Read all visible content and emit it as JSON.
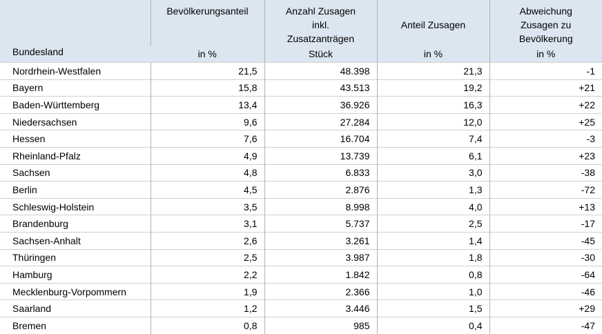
{
  "table": {
    "columns": [
      {
        "title": "Bundesland"
      },
      {
        "title": "Bevölkerungsanteil",
        "unit": "in %"
      },
      {
        "title": "Anzahl Zusagen inkl. Zusatzanträgen",
        "unit": "Stück"
      },
      {
        "title": "Anteil Zusagen",
        "unit": "in %"
      },
      {
        "title": "Abweichung Zusagen zu Bevölkerung",
        "unit": "in %"
      }
    ],
    "rows": [
      [
        "Nordrhein-Westfalen",
        "21,5",
        "48.398",
        "21,3",
        "-1"
      ],
      [
        "Bayern",
        "15,8",
        "43.513",
        "19,2",
        "+21"
      ],
      [
        "Baden-Württemberg",
        "13,4",
        "36.926",
        "16,3",
        "+22"
      ],
      [
        "Niedersachsen",
        "9,6",
        "27.284",
        "12,0",
        "+25"
      ],
      [
        "Hessen",
        "7,6",
        "16.704",
        "7,4",
        "-3"
      ],
      [
        "Rheinland-Pfalz",
        "4,9",
        "13.739",
        "6,1",
        "+23"
      ],
      [
        "Sachsen",
        "4,8",
        "6.833",
        "3,0",
        "-38"
      ],
      [
        "Berlin",
        "4,5",
        "2.876",
        "1,3",
        "-72"
      ],
      [
        "Schleswig-Holstein",
        "3,5",
        "8.998",
        "4,0",
        "+13"
      ],
      [
        "Brandenburg",
        "3,1",
        "5.737",
        "2,5",
        "-17"
      ],
      [
        "Sachsen-Anhalt",
        "2,6",
        "3.261",
        "1,4",
        "-45"
      ],
      [
        "Thüringen",
        "2,5",
        "3.987",
        "1,8",
        "-30"
      ],
      [
        "Hamburg",
        "2,2",
        "1.842",
        "0,8",
        "-64"
      ],
      [
        "Mecklenburg-Vorpommern",
        "1,9",
        "2.366",
        "1,0",
        "-46"
      ],
      [
        "Saarland",
        "1,2",
        "3.446",
        "1,5",
        "+29"
      ],
      [
        "Bremen",
        "0,8",
        "985",
        "0,4",
        "-47"
      ]
    ]
  }
}
